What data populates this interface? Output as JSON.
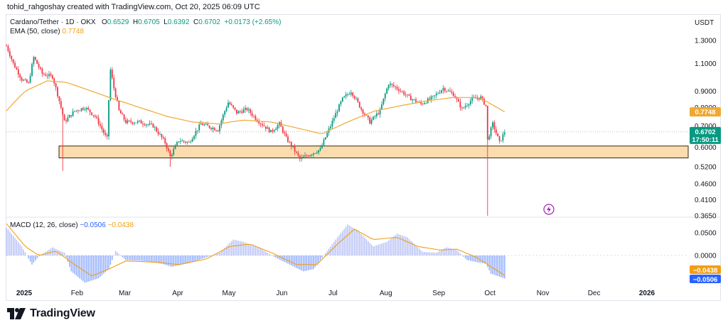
{
  "header": {
    "creator_line": "tohid_rahgoshay created with TradingView.com, Oct 20, 2025 06:09 UTC"
  },
  "legend": {
    "symbol": "Cardano/Tether · 1D · OKX",
    "o_label": "O",
    "o_value": "0.6529",
    "h_label": "H",
    "h_value": "0.6705",
    "l_label": "L",
    "l_value": "0.6392",
    "c_label": "C",
    "c_value": "0.6702",
    "change": "+0.0173 (+2.65%)",
    "ema_label": "EMA (50, close)",
    "ema_value": "0.7748",
    "macd_label": "MACD (12, 26, close)",
    "macd_value": "−0.0506",
    "signal_value": "−0.0438"
  },
  "price_axis_unit": "USDT",
  "badges": {
    "ema": "0.7748",
    "price": "0.6702",
    "countdown": "17:50:11",
    "signal": "−0.0438",
    "macd": "−0.0506"
  },
  "colors": {
    "up": "#089981",
    "down": "#f23645",
    "ema": "#f0a832",
    "macd_hist": "#b2bdf5",
    "signal": "#f59d12",
    "macd_line": "#2962ff",
    "zone_fill": "#fbdcae",
    "zone_stroke": "#3a2a0a"
  },
  "footer": {
    "brand": "TradingView",
    "logo_icon": "tradingview-logo-icon"
  },
  "chart_data": {
    "type": "candlestick",
    "symbol": "Cardano/Tether",
    "interval": "1D",
    "exchange": "OKX",
    "y_scale": "log",
    "price_ticks": [
      "1.3000",
      "1.1000",
      "0.9000",
      "0.8000",
      "0.7000",
      "0.6000",
      "0.5200",
      "0.4600",
      "0.4100",
      "0.3650"
    ],
    "macd_ticks": [
      "0.0500",
      "0.0000"
    ],
    "x_ticks": [
      "2025",
      "Feb",
      "Mar",
      "Apr",
      "May",
      "Jun",
      "Jul",
      "Aug",
      "Sep",
      "Oct",
      "Nov",
      "Dec",
      "2026"
    ],
    "support_zone": [
      0.555,
      0.605
    ],
    "last_close": 0.6702,
    "ema50": 0.7748,
    "macd": -0.0506,
    "signal": -0.0438,
    "price_path": [
      [
        "2025-01-01",
        1.25
      ],
      [
        "2025-01-05",
        1.1
      ],
      [
        "2025-01-10",
        0.98
      ],
      [
        "2025-01-14",
        0.95
      ],
      [
        "2025-01-17",
        1.15
      ],
      [
        "2025-01-22",
        1.02
      ],
      [
        "2025-01-28",
        1.0
      ],
      [
        "2025-02-02",
        0.8
      ],
      [
        "2025-02-04",
        0.72
      ],
      [
        "2025-02-10",
        0.78
      ],
      [
        "2025-02-16",
        0.8
      ],
      [
        "2025-02-22",
        0.75
      ],
      [
        "2025-02-28",
        0.65
      ],
      [
        "2025-03-01",
        0.64
      ],
      [
        "2025-03-03",
        1.05
      ],
      [
        "2025-03-05",
        0.92
      ],
      [
        "2025-03-08",
        0.78
      ],
      [
        "2025-03-12",
        0.72
      ],
      [
        "2025-03-20",
        0.72
      ],
      [
        "2025-03-28",
        0.7
      ],
      [
        "2025-04-04",
        0.62
      ],
      [
        "2025-04-07",
        0.56
      ],
      [
        "2025-04-12",
        0.63
      ],
      [
        "2025-04-18",
        0.62
      ],
      [
        "2025-04-25",
        0.71
      ],
      [
        "2025-05-05",
        0.68
      ],
      [
        "2025-05-11",
        0.83
      ],
      [
        "2025-05-16",
        0.77
      ],
      [
        "2025-05-22",
        0.79
      ],
      [
        "2025-05-28",
        0.73
      ],
      [
        "2025-06-05",
        0.67
      ],
      [
        "2025-06-10",
        0.71
      ],
      [
        "2025-06-14",
        0.64
      ],
      [
        "2025-06-22",
        0.55
      ],
      [
        "2025-06-28",
        0.57
      ],
      [
        "2025-07-04",
        0.59
      ],
      [
        "2025-07-10",
        0.7
      ],
      [
        "2025-07-17",
        0.85
      ],
      [
        "2025-07-22",
        0.9
      ],
      [
        "2025-07-28",
        0.79
      ],
      [
        "2025-08-02",
        0.72
      ],
      [
        "2025-08-08",
        0.78
      ],
      [
        "2025-08-13",
        0.95
      ],
      [
        "2025-08-18",
        0.92
      ],
      [
        "2025-08-25",
        0.86
      ],
      [
        "2025-09-01",
        0.82
      ],
      [
        "2025-09-08",
        0.86
      ],
      [
        "2025-09-14",
        0.92
      ],
      [
        "2025-09-20",
        0.88
      ],
      [
        "2025-09-25",
        0.79
      ],
      [
        "2025-10-01",
        0.85
      ],
      [
        "2025-10-06",
        0.86
      ],
      [
        "2025-10-09",
        0.81
      ],
      [
        "2025-10-10",
        0.63
      ],
      [
        "2025-10-13",
        0.71
      ],
      [
        "2025-10-17",
        0.62
      ],
      [
        "2025-10-20",
        0.6702
      ]
    ],
    "ema_path": [
      [
        "2025-01-01",
        0.78
      ],
      [
        "2025-01-12",
        0.9
      ],
      [
        "2025-01-25",
        0.97
      ],
      [
        "2025-02-05",
        0.96
      ],
      [
        "2025-02-20",
        0.9
      ],
      [
        "2025-03-05",
        0.85
      ],
      [
        "2025-03-20",
        0.8
      ],
      [
        "2025-04-05",
        0.75
      ],
      [
        "2025-04-20",
        0.72
      ],
      [
        "2025-05-05",
        0.71
      ],
      [
        "2025-05-20",
        0.73
      ],
      [
        "2025-06-05",
        0.72
      ],
      [
        "2025-06-20",
        0.69
      ],
      [
        "2025-07-05",
        0.66
      ],
      [
        "2025-07-20",
        0.72
      ],
      [
        "2025-08-05",
        0.78
      ],
      [
        "2025-08-20",
        0.81
      ],
      [
        "2025-09-05",
        0.84
      ],
      [
        "2025-09-20",
        0.86
      ],
      [
        "2025-10-05",
        0.86
      ],
      [
        "2025-10-20",
        0.7748
      ]
    ],
    "macd_hist_path": [
      [
        "2025-01-01",
        0.062
      ],
      [
        "2025-01-10",
        0.02
      ],
      [
        "2025-01-16",
        -0.02
      ],
      [
        "2025-01-20",
        -0.002
      ],
      [
        "2025-01-28",
        0.018
      ],
      [
        "2025-02-04",
        0.006
      ],
      [
        "2025-02-08",
        -0.035
      ],
      [
        "2025-02-16",
        -0.06
      ],
      [
        "2025-02-24",
        -0.05
      ],
      [
        "2025-03-02",
        -0.03
      ],
      [
        "2025-03-06",
        0.01
      ],
      [
        "2025-03-12",
        -0.01
      ],
      [
        "2025-03-22",
        -0.012
      ],
      [
        "2025-04-02",
        -0.018
      ],
      [
        "2025-04-08",
        -0.025
      ],
      [
        "2025-04-20",
        -0.015
      ],
      [
        "2025-04-28",
        -0.004
      ],
      [
        "2025-05-06",
        0.006
      ],
      [
        "2025-05-14",
        0.035
      ],
      [
        "2025-05-20",
        0.03
      ],
      [
        "2025-05-30",
        0.015
      ],
      [
        "2025-06-08",
        -0.005
      ],
      [
        "2025-06-16",
        -0.02
      ],
      [
        "2025-06-24",
        -0.035
      ],
      [
        "2025-06-30",
        -0.03
      ],
      [
        "2025-07-06",
        0.0
      ],
      [
        "2025-07-14",
        0.04
      ],
      [
        "2025-07-20",
        0.068
      ],
      [
        "2025-07-26",
        0.055
      ],
      [
        "2025-08-04",
        0.02
      ],
      [
        "2025-08-12",
        0.03
      ],
      [
        "2025-08-18",
        0.048
      ],
      [
        "2025-08-24",
        0.04
      ],
      [
        "2025-09-02",
        0.008
      ],
      [
        "2025-09-10",
        0.006
      ],
      [
        "2025-09-16",
        0.018
      ],
      [
        "2025-09-22",
        0.012
      ],
      [
        "2025-09-28",
        -0.01
      ],
      [
        "2025-10-04",
        -0.015
      ],
      [
        "2025-10-09",
        -0.018
      ],
      [
        "2025-10-12",
        -0.04
      ],
      [
        "2025-10-20",
        -0.0506
      ]
    ],
    "signal_path": [
      [
        "2025-01-01",
        0.07
      ],
      [
        "2025-01-12",
        0.02
      ],
      [
        "2025-01-20",
        0.0
      ],
      [
        "2025-01-30",
        0.01
      ],
      [
        "2025-02-10",
        -0.02
      ],
      [
        "2025-02-20",
        -0.045
      ],
      [
        "2025-03-02",
        -0.03
      ],
      [
        "2025-03-12",
        -0.012
      ],
      [
        "2025-03-30",
        -0.015
      ],
      [
        "2025-04-12",
        -0.02
      ],
      [
        "2025-04-28",
        -0.008
      ],
      [
        "2025-05-12",
        0.02
      ],
      [
        "2025-05-24",
        0.025
      ],
      [
        "2025-06-06",
        0.005
      ],
      [
        "2025-06-20",
        -0.02
      ],
      [
        "2025-07-02",
        -0.02
      ],
      [
        "2025-07-14",
        0.025
      ],
      [
        "2025-07-24",
        0.058
      ],
      [
        "2025-08-04",
        0.035
      ],
      [
        "2025-08-18",
        0.04
      ],
      [
        "2025-08-30",
        0.02
      ],
      [
        "2025-09-12",
        0.012
      ],
      [
        "2025-09-22",
        0.014
      ],
      [
        "2025-10-04",
        -0.005
      ],
      [
        "2025-10-12",
        -0.025
      ],
      [
        "2025-10-20",
        -0.0438
      ]
    ]
  }
}
